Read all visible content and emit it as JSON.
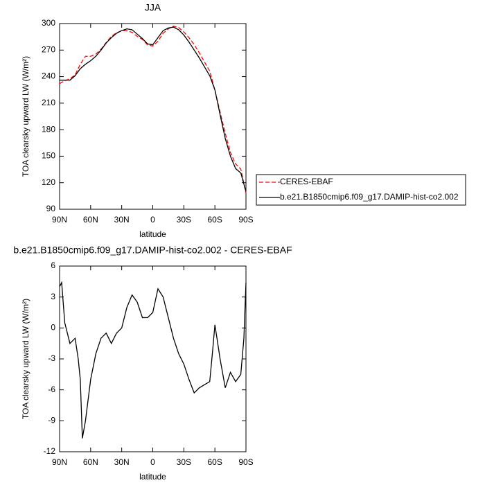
{
  "chart_data": [
    {
      "type": "line",
      "title": "JJA",
      "xlabel": "latitude",
      "ylabel": "TOA clearsky upward LW (W/m²)",
      "x": [
        90,
        85,
        80,
        75,
        70,
        65,
        60,
        55,
        50,
        45,
        40,
        35,
        30,
        25,
        20,
        15,
        10,
        5,
        0,
        -5,
        -10,
        -15,
        -20,
        -25,
        -30,
        -35,
        -40,
        -45,
        -50,
        -55,
        -60,
        -65,
        -70,
        -75,
        -80,
        -85,
        -90
      ],
      "series": [
        {
          "name": "CERES-EBAF",
          "color": "#ff0000",
          "line_style": "dashed",
          "values": [
            232,
            235.5,
            237.5,
            242,
            254,
            263,
            263,
            265.5,
            271,
            278.5,
            285.5,
            289.5,
            292,
            292,
            290,
            285.5,
            282,
            276,
            274.5,
            280,
            289,
            294,
            297,
            295.5,
            290.5,
            284,
            276.3,
            266.8,
            256.5,
            246.2,
            224.7,
            200,
            175.8,
            154.3,
            141.2,
            135.5,
            108
          ]
        },
        {
          "name": "b.e21.B1850cmip6.f09_g17.DAMIP-hist-co2.002",
          "color": "#000000",
          "line_style": "solid",
          "values": [
            236,
            236,
            236,
            241,
            249,
            254,
            258,
            263,
            270,
            278,
            284,
            289,
            292,
            294,
            293,
            288,
            283,
            277,
            276,
            284,
            292,
            295,
            296,
            293,
            287,
            279,
            270,
            261,
            251,
            241,
            225,
            197,
            170,
            150,
            136,
            131,
            110
          ]
        }
      ],
      "xlim": [
        90,
        -90
      ],
      "xticks": [
        {
          "value": 90,
          "label": "90N"
        },
        {
          "value": 60,
          "label": "60N"
        },
        {
          "value": 30,
          "label": "30N"
        },
        0,
        {
          "value": -30,
          "label": "30S"
        },
        {
          "value": -60,
          "label": "60S"
        },
        {
          "value": -90,
          "label": "90S"
        }
      ],
      "ylim": [
        90,
        300
      ],
      "yticks": [
        90,
        120,
        150,
        180,
        210,
        240,
        270,
        300
      ],
      "legend": "outside-right"
    },
    {
      "type": "line",
      "title": "b.e21.B1850cmip6.f09_g17.DAMIP-hist-co2.002 - CERES-EBAF",
      "xlabel": "latitude",
      "ylabel": "TOA clearsky upward LW (W/m²)",
      "x": [
        90,
        88,
        85,
        80,
        75,
        72,
        70,
        68,
        65,
        60,
        55,
        50,
        45,
        40,
        35,
        30,
        25,
        20,
        15,
        10,
        5,
        0,
        -5,
        -10,
        -15,
        -20,
        -25,
        -30,
        -35,
        -40,
        -45,
        -50,
        -55,
        -58,
        -60,
        -62,
        -65,
        -70,
        -75,
        -80,
        -85,
        -88,
        -90
      ],
      "series": [
        {
          "color": "#000000",
          "line_style": "solid",
          "values": [
            4,
            4.4,
            0.5,
            -1.5,
            -1,
            -3,
            -5,
            -10.7,
            -9,
            -5,
            -2.5,
            -1,
            -0.5,
            -1.5,
            -0.5,
            0,
            2,
            3.2,
            2.5,
            1,
            1,
            1.5,
            3.8,
            3,
            1,
            -1,
            -2.5,
            -3.5,
            -5,
            -6.3,
            -5.8,
            -5.5,
            -5.2,
            -2,
            0.3,
            -1,
            -3,
            -5.8,
            -4.3,
            -5.2,
            -4.5,
            -1,
            4.4
          ]
        }
      ],
      "xlim": [
        90,
        -90
      ],
      "xticks": [
        {
          "value": 90,
          "label": "90N"
        },
        {
          "value": 60,
          "label": "60N"
        },
        {
          "value": 30,
          "label": "30N"
        },
        0,
        {
          "value": -30,
          "label": "30S"
        },
        {
          "value": -60,
          "label": "60S"
        },
        {
          "value": -90,
          "label": "90S"
        }
      ],
      "ylim": [
        -12,
        6
      ],
      "yticks": [
        -12,
        -9,
        -6,
        -3,
        0,
        3,
        6
      ]
    }
  ]
}
